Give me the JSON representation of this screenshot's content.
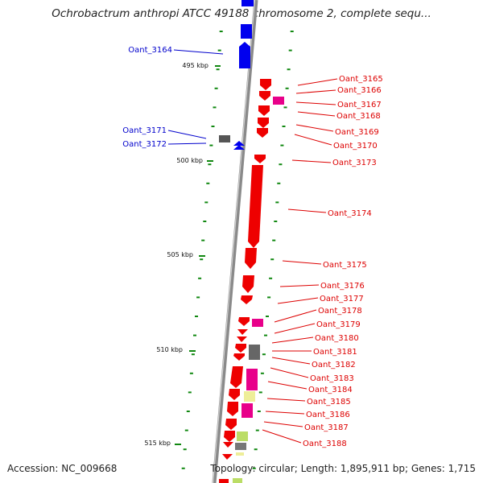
{
  "title": "Ochrobactrum anthropi ATCC 49188 chromosome 2, complete sequ...",
  "footer": {
    "accession": "Accession: NC_009668",
    "summary": "Topology: circular; Length: 1,895,911 bp; Genes: 1,715"
  },
  "colors": {
    "backbone": "#888888",
    "forward_strand": "#0000ee",
    "reverse_strand": "#ee0000",
    "tick": "#118811"
  },
  "ruler": [
    {
      "label": "495 kbp"
    },
    {
      "label": "500 kbp"
    },
    {
      "label": "505 kbp"
    },
    {
      "label": "510 kbp"
    },
    {
      "label": "515 kbp"
    }
  ],
  "left_labels": [
    {
      "text": "Oant_3164"
    },
    {
      "text": "Oant_3171"
    },
    {
      "text": "Oant_3172"
    }
  ],
  "right_labels": [
    {
      "text": "Oant_3165"
    },
    {
      "text": "Oant_3166"
    },
    {
      "text": "Oant_3167"
    },
    {
      "text": "Oant_3168"
    },
    {
      "text": "Oant_3169"
    },
    {
      "text": "Oant_3170"
    },
    {
      "text": "Oant_3173"
    },
    {
      "text": "Oant_3174"
    },
    {
      "text": "Oant_3175"
    },
    {
      "text": "Oant_3176"
    },
    {
      "text": "Oant_3177"
    },
    {
      "text": "Oant_3178"
    },
    {
      "text": "Oant_3179"
    },
    {
      "text": "Oant_3180"
    },
    {
      "text": "Oant_3181"
    },
    {
      "text": "Oant_3182"
    },
    {
      "text": "Oant_3183"
    },
    {
      "text": "Oant_3184"
    },
    {
      "text": "Oant_3185"
    },
    {
      "text": "Oant_3186"
    },
    {
      "text": "Oant_3187"
    },
    {
      "text": "Oant_3188"
    }
  ]
}
